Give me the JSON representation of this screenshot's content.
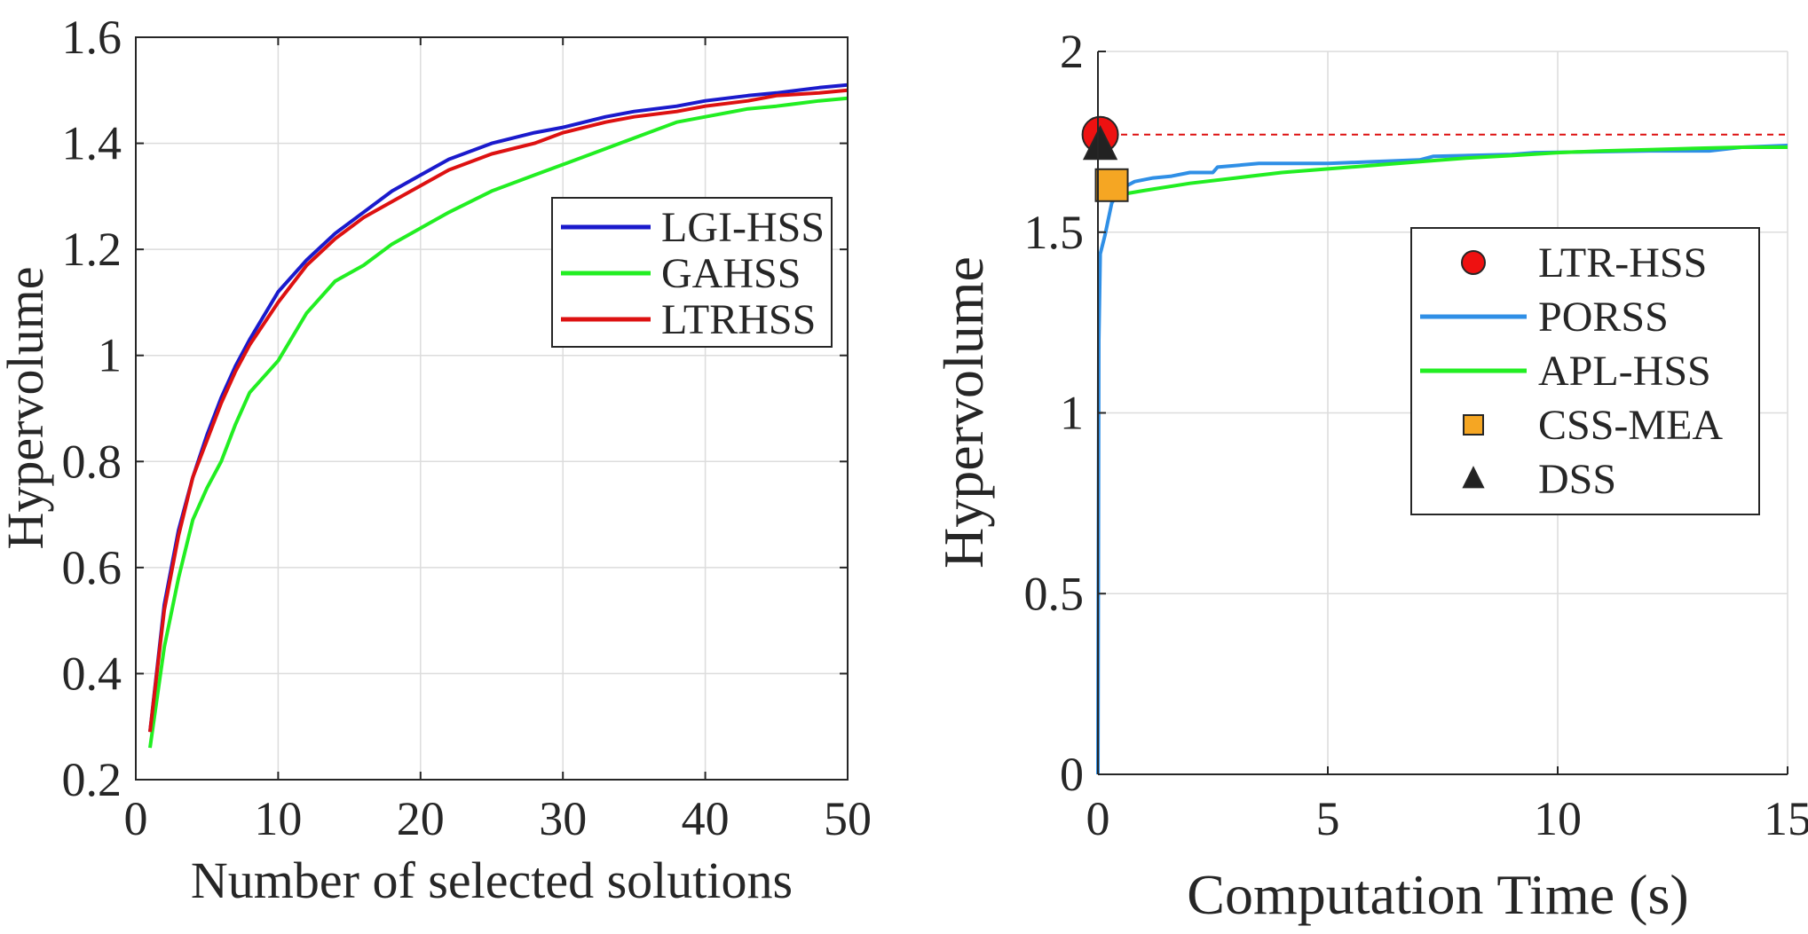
{
  "chart_data": [
    {
      "type": "line",
      "title": "",
      "xlabel": "Number of selected solutions",
      "ylabel": "Hypervolume",
      "xlim": [
        0,
        50
      ],
      "ylim": [
        0.2,
        1.6
      ],
      "xticks": [
        0,
        10,
        20,
        30,
        40,
        50
      ],
      "yticks": [
        0.2,
        0.4,
        0.6,
        0.8,
        1,
        1.2,
        1.4,
        1.6
      ],
      "xtick_labels": [
        "0",
        "10",
        "20",
        "30",
        "40",
        "50"
      ],
      "ytick_labels": [
        "0.2",
        "0.4",
        "0.6",
        "0.8",
        "1",
        "1.2",
        "1.4",
        "1.6"
      ],
      "grid": true,
      "legend_position": "center-right",
      "x": [
        1,
        2,
        3,
        4,
        5,
        6,
        7,
        8,
        10,
        12,
        14,
        16,
        18,
        20,
        22,
        25,
        28,
        30,
        33,
        35,
        38,
        40,
        43,
        45,
        48,
        50
      ],
      "series": [
        {
          "name": "LGI-HSS",
          "color": "#1a1acc",
          "values": [
            0.29,
            0.53,
            0.67,
            0.77,
            0.85,
            0.92,
            0.98,
            1.03,
            1.12,
            1.18,
            1.23,
            1.27,
            1.31,
            1.34,
            1.37,
            1.4,
            1.42,
            1.43,
            1.45,
            1.46,
            1.47,
            1.48,
            1.49,
            1.495,
            1.505,
            1.51
          ]
        },
        {
          "name": "GAHSS",
          "color": "#22ee22",
          "values": [
            0.26,
            0.45,
            0.58,
            0.69,
            0.75,
            0.8,
            0.87,
            0.93,
            0.99,
            1.08,
            1.14,
            1.17,
            1.21,
            1.24,
            1.27,
            1.31,
            1.34,
            1.36,
            1.39,
            1.41,
            1.44,
            1.45,
            1.465,
            1.47,
            1.48,
            1.485
          ]
        },
        {
          "name": "LTRHSS",
          "color": "#dd1111",
          "values": [
            0.29,
            0.52,
            0.66,
            0.77,
            0.84,
            0.91,
            0.97,
            1.02,
            1.1,
            1.17,
            1.22,
            1.26,
            1.29,
            1.32,
            1.35,
            1.38,
            1.4,
            1.42,
            1.44,
            1.45,
            1.46,
            1.47,
            1.48,
            1.49,
            1.495,
            1.5
          ]
        }
      ]
    },
    {
      "type": "line",
      "title": "",
      "xlabel": "Computation Time (s)",
      "ylabel": "Hypervolume",
      "xlim": [
        0,
        15
      ],
      "ylim": [
        0,
        2
      ],
      "xticks": [
        0,
        5,
        10,
        15
      ],
      "yticks": [
        0,
        0.5,
        1,
        1.5,
        2
      ],
      "xtick_labels": [
        "0",
        "5",
        "10",
        "15"
      ],
      "ytick_labels": [
        "0",
        "0.5",
        "1",
        "1.5",
        "2"
      ],
      "grid": true,
      "legend_position": "center-right",
      "reference_line": {
        "y": 1.77,
        "style": "dashed",
        "color": "#dd1111"
      },
      "series": [
        {
          "name": "LTR-HSS",
          "kind": "marker",
          "marker": "circle",
          "color": "#ee1111",
          "points": [
            [
              0.05,
              1.77
            ]
          ]
        },
        {
          "name": "PORSS",
          "kind": "line",
          "color": "#2f8fe6",
          "points": [
            [
              0,
              0
            ],
            [
              0.02,
              1.2
            ],
            [
              0.05,
              1.44
            ],
            [
              0.15,
              1.49
            ],
            [
              0.3,
              1.58
            ],
            [
              0.5,
              1.62
            ],
            [
              0.8,
              1.64
            ],
            [
              1.2,
              1.65
            ],
            [
              1.6,
              1.655
            ],
            [
              2,
              1.665
            ],
            [
              2.5,
              1.665
            ],
            [
              2.6,
              1.68
            ],
            [
              3.5,
              1.69
            ],
            [
              5,
              1.69
            ],
            [
              6,
              1.695
            ],
            [
              7,
              1.7
            ],
            [
              7.3,
              1.71
            ],
            [
              9,
              1.715
            ],
            [
              9.5,
              1.72
            ],
            [
              12,
              1.725
            ],
            [
              13.3,
              1.725
            ],
            [
              14,
              1.735
            ],
            [
              15,
              1.74
            ]
          ]
        },
        {
          "name": "APL-HSS",
          "kind": "line",
          "color": "#22ee22",
          "points": [
            [
              0.3,
              1.6
            ],
            [
              1,
              1.615
            ],
            [
              2,
              1.635
            ],
            [
              3,
              1.65
            ],
            [
              4,
              1.665
            ],
            [
              5,
              1.675
            ],
            [
              6,
              1.685
            ],
            [
              7,
              1.695
            ],
            [
              8,
              1.705
            ],
            [
              9,
              1.712
            ],
            [
              10,
              1.72
            ],
            [
              11,
              1.725
            ],
            [
              12,
              1.728
            ],
            [
              13,
              1.732
            ],
            [
              14,
              1.735
            ],
            [
              15,
              1.735
            ]
          ]
        },
        {
          "name": "CSS-MEA",
          "kind": "marker",
          "marker": "square",
          "color": "#f5a623",
          "points": [
            [
              0.3,
              1.63
            ]
          ]
        },
        {
          "name": "DSS",
          "kind": "marker",
          "marker": "triangle",
          "color": "#222222",
          "points": [
            [
              0.05,
              1.74
            ]
          ]
        }
      ]
    }
  ]
}
